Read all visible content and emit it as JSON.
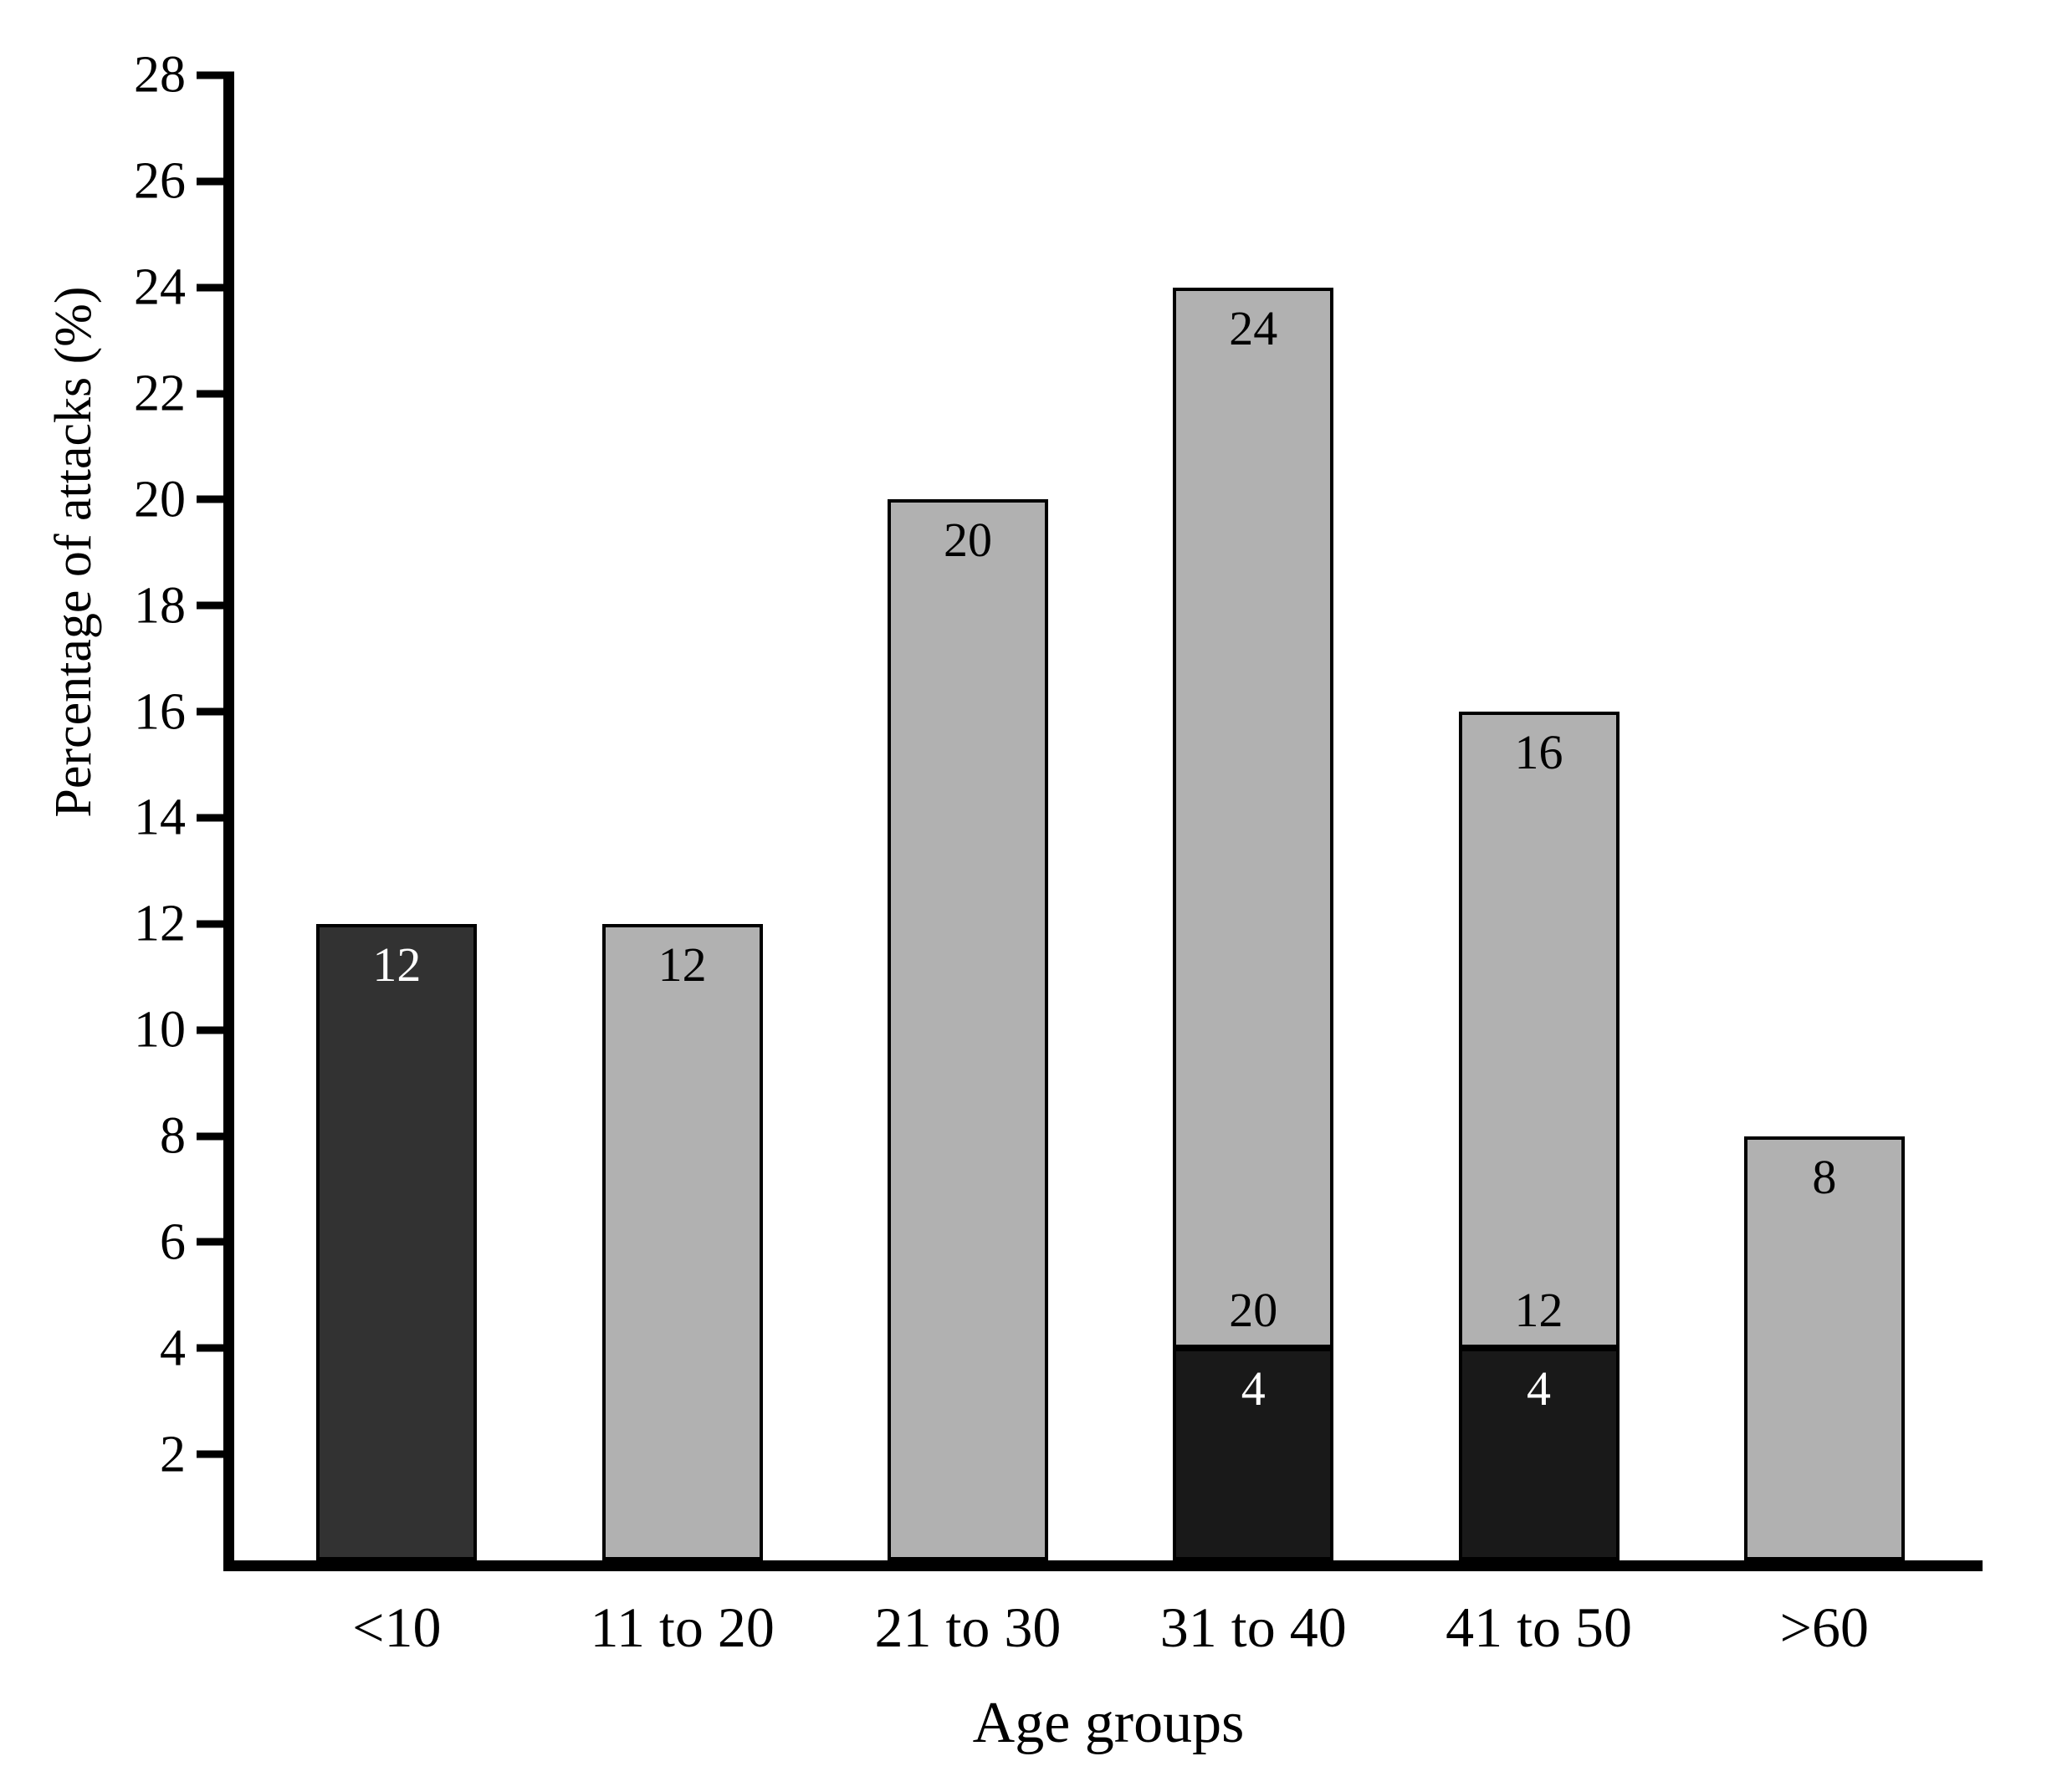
{
  "chart_data": {
    "type": "bar",
    "stacked": true,
    "title": "",
    "xlabel": "Age groups",
    "ylabel": "Percentage of attacks (%)",
    "ylim": [
      0,
      28
    ],
    "ytick_step": 2,
    "yticks": [
      2,
      4,
      6,
      8,
      10,
      12,
      14,
      16,
      18,
      20,
      22,
      24,
      26,
      28
    ],
    "grid": false,
    "legend": "none",
    "categories": [
      "<10",
      "11 to 20",
      "21 to 30",
      "31 to 40",
      "41 to 50",
      ">60"
    ],
    "series": [
      {
        "name": "dark-segment",
        "values": [
          12,
          0,
          0,
          4,
          4,
          0
        ]
      },
      {
        "name": "gray-segment",
        "values": [
          0,
          12,
          20,
          20,
          12,
          8
        ]
      }
    ],
    "totals": [
      12,
      12,
      20,
      24,
      16,
      8
    ],
    "colors": {
      "gray": "#b1b1b1",
      "dark1": "#323232",
      "dark2": "#191919",
      "axis": "#000000",
      "label_on_gray": "#000000",
      "label_on_dark": "#ffffff"
    },
    "bars": [
      {
        "category": "<10",
        "segments": [
          {
            "value": 12,
            "color": "dark1",
            "label_top": "12",
            "label_top_color": "#ffffff"
          }
        ]
      },
      {
        "category": "11 to 20",
        "segments": [
          {
            "value": 12,
            "color": "gray",
            "label_top": "12",
            "label_top_color": "#000000"
          }
        ]
      },
      {
        "category": "21 to 30",
        "segments": [
          {
            "value": 20,
            "color": "gray",
            "label_top": "20",
            "label_top_color": "#000000"
          }
        ]
      },
      {
        "category": "31 to 40",
        "segments": [
          {
            "value": 4,
            "color": "dark2",
            "label_top": "4",
            "label_top_color": "#ffffff"
          },
          {
            "value": 20,
            "color": "gray",
            "label_top": "24",
            "label_top_color": "#000000",
            "label_bottom": "20",
            "label_bottom_color": "#000000"
          }
        ]
      },
      {
        "category": "41 to 50",
        "segments": [
          {
            "value": 4,
            "color": "dark2",
            "label_top": "4",
            "label_top_color": "#ffffff"
          },
          {
            "value": 12,
            "color": "gray",
            "label_top": "16",
            "label_top_color": "#000000",
            "label_bottom": "12",
            "label_bottom_color": "#000000"
          }
        ]
      },
      {
        "category": ">60",
        "segments": [
          {
            "value": 8,
            "color": "gray",
            "label_top": "8",
            "label_top_color": "#000000"
          }
        ]
      }
    ]
  }
}
